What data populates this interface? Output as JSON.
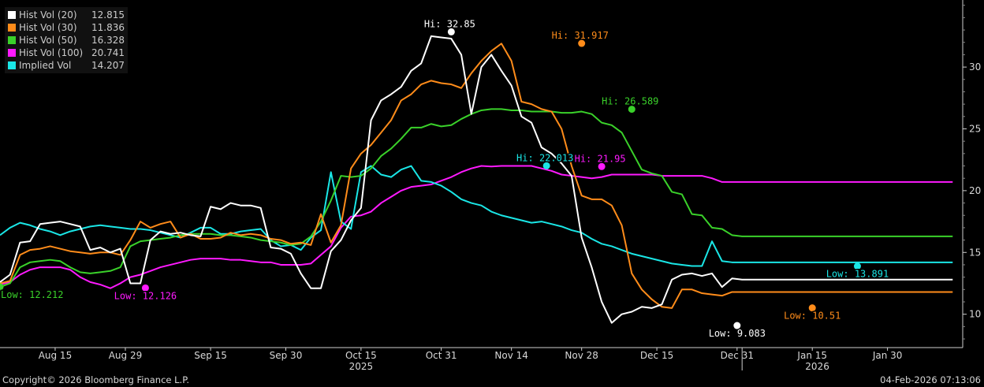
{
  "legend": [
    {
      "name": "Hist Vol (20)",
      "value": "12.815",
      "color": "#ffffff"
    },
    {
      "name": "Hist Vol (30)",
      "value": "11.836",
      "color": "#ff8c1a"
    },
    {
      "name": "Hist Vol (50)",
      "value": "16.328",
      "color": "#3ad12a"
    },
    {
      "name": "Hist Vol (100)",
      "value": "20.741",
      "color": "#ff1aff"
    },
    {
      "name": "Implied Vol",
      "value": "14.207",
      "color": "#1ae6e6"
    }
  ],
  "footer": {
    "copyright": "Copyright© 2026 Bloomberg Finance L.P.",
    "timestamp": "04-Feb-2026 07:13:06"
  },
  "chart_data": {
    "type": "line",
    "x": [
      0,
      2,
      4,
      6,
      8,
      10,
      12,
      14,
      16,
      18,
      20,
      22,
      24,
      26,
      28,
      30,
      32,
      34,
      36,
      38,
      40,
      42,
      44,
      46,
      48,
      50,
      52,
      54,
      56,
      58,
      60,
      62,
      64,
      66,
      68,
      70,
      72,
      74,
      76,
      78,
      80,
      82,
      84,
      86,
      88,
      90,
      92,
      94,
      96,
      98,
      100,
      102,
      104,
      106,
      108,
      110,
      112,
      114,
      116,
      118,
      120,
      122,
      124,
      126,
      128,
      130,
      132,
      134,
      136,
      138,
      140,
      142,
      144,
      146,
      148,
      150,
      152,
      154,
      156,
      158,
      160,
      162,
      164,
      166,
      168,
      170,
      172,
      174,
      176,
      178,
      180,
      182,
      184,
      186,
      188,
      190
    ],
    "x_tick_labels": [
      {
        "x": 11,
        "label": "Aug 15"
      },
      {
        "x": 25,
        "label": "Aug 29"
      },
      {
        "x": 42,
        "label": "Sep 15"
      },
      {
        "x": 57,
        "label": "Sep 30"
      },
      {
        "x": 72,
        "label": "Oct 15"
      },
      {
        "x": 88,
        "label": "Oct 31"
      },
      {
        "x": 102,
        "label": "Nov 14"
      },
      {
        "x": 116,
        "label": "Nov 28"
      },
      {
        "x": 131,
        "label": "Dec 15"
      },
      {
        "x": 147,
        "label": "Dec 31"
      },
      {
        "x": 162,
        "label": "Jan 15"
      },
      {
        "x": 177,
        "label": "Jan 30"
      }
    ],
    "x_year_labels": [
      {
        "x": 72,
        "label": "2025"
      },
      {
        "x": 163,
        "label": "2026"
      }
    ],
    "x_year_divider": 148,
    "ylim": [
      7.3,
      35.3
    ],
    "y_ticks": [
      10,
      15,
      20,
      25,
      30
    ],
    "grid": false,
    "legend_position": "top-left",
    "series": [
      {
        "name": "Hist Vol (20)",
        "color": "#ffffff",
        "values": [
          12.6,
          13.2,
          15.8,
          15.9,
          17.3,
          17.4,
          17.5,
          17.3,
          17.1,
          15.2,
          15.4,
          15.0,
          15.3,
          12.5,
          12.5,
          16.0,
          16.7,
          16.5,
          16.6,
          16.4,
          16.3,
          18.7,
          18.5,
          19.0,
          18.8,
          18.8,
          18.6,
          15.4,
          15.3,
          14.9,
          13.3,
          12.1,
          12.1,
          15.1,
          16.0,
          17.6,
          18.6,
          25.7,
          27.3,
          27.8,
          28.4,
          29.7,
          30.3,
          32.5,
          32.4,
          32.3,
          31.0,
          26.2,
          30.0,
          31.0,
          29.7,
          28.5,
          26.0,
          25.5,
          23.5,
          23.0,
          22.2,
          21.2,
          16.2,
          13.8,
          11.0,
          9.3,
          10.0,
          10.2,
          10.6,
          10.5,
          10.8,
          12.8,
          13.2,
          13.3,
          13.1,
          13.3,
          12.2,
          12.9,
          12.8,
          12.8,
          12.8,
          12.8,
          12.8,
          12.8,
          12.8,
          12.8,
          12.8,
          12.8,
          12.8,
          12.8,
          12.8,
          12.8,
          12.8,
          12.8,
          12.8,
          12.8,
          12.8,
          12.8,
          12.8,
          12.8
        ]
      },
      {
        "name": "Hist Vol (30)",
        "color": "#ff8c1a",
        "values": [
          12.5,
          12.7,
          14.8,
          15.2,
          15.3,
          15.5,
          15.3,
          15.1,
          15.0,
          14.9,
          15.0,
          15.0,
          14.8,
          16.0,
          17.5,
          17.0,
          17.3,
          17.5,
          16.2,
          16.5,
          16.1,
          16.1,
          16.2,
          16.6,
          16.4,
          16.5,
          16.4,
          16.1,
          16.0,
          15.7,
          15.8,
          15.6,
          18.1,
          15.8,
          17.2,
          21.8,
          23.0,
          23.7,
          24.7,
          25.7,
          27.3,
          27.8,
          28.6,
          28.9,
          28.7,
          28.6,
          28.3,
          29.5,
          30.5,
          31.3,
          31.9,
          30.5,
          27.2,
          27.0,
          26.6,
          26.4,
          25.0,
          22.0,
          19.6,
          19.3,
          19.3,
          18.8,
          17.2,
          13.3,
          12.0,
          11.2,
          10.6,
          10.5,
          12.0,
          12.0,
          11.7,
          11.6,
          11.5,
          11.8,
          11.8,
          11.8,
          11.8,
          11.8,
          11.8,
          11.8,
          11.8,
          11.8,
          11.8,
          11.8,
          11.8,
          11.8,
          11.8,
          11.8,
          11.8,
          11.8,
          11.8,
          11.8,
          11.8,
          11.8,
          11.8,
          11.8
        ]
      },
      {
        "name": "Hist Vol (50)",
        "color": "#3ad12a",
        "values": [
          12.2,
          12.5,
          13.8,
          14.2,
          14.3,
          14.4,
          14.3,
          13.8,
          13.4,
          13.3,
          13.4,
          13.5,
          13.8,
          15.5,
          15.9,
          16.0,
          16.1,
          16.2,
          16.4,
          16.5,
          16.5,
          16.5,
          16.4,
          16.4,
          16.3,
          16.2,
          16.0,
          15.9,
          15.8,
          15.6,
          15.7,
          16.3,
          17.5,
          19.2,
          21.2,
          21.1,
          21.2,
          21.8,
          22.8,
          23.4,
          24.2,
          25.1,
          25.1,
          25.4,
          25.2,
          25.3,
          25.8,
          26.2,
          26.5,
          26.6,
          26.6,
          26.5,
          26.5,
          26.4,
          26.4,
          26.4,
          26.3,
          26.3,
          26.4,
          26.2,
          25.5,
          25.3,
          24.7,
          23.2,
          21.7,
          21.4,
          21.2,
          19.9,
          19.7,
          18.1,
          18.0,
          17.0,
          16.9,
          16.4,
          16.3,
          16.3,
          16.3,
          16.3,
          16.3,
          16.3,
          16.3,
          16.3,
          16.3,
          16.3,
          16.3,
          16.3,
          16.3,
          16.3,
          16.3,
          16.3,
          16.3,
          16.3,
          16.3,
          16.3,
          16.3,
          16.3
        ]
      },
      {
        "name": "Hist Vol (100)",
        "color": "#ff1aff",
        "values": [
          12.4,
          12.6,
          13.2,
          13.6,
          13.8,
          13.8,
          13.8,
          13.6,
          13.0,
          12.6,
          12.4,
          12.1,
          12.5,
          13.0,
          13.2,
          13.5,
          13.8,
          14.0,
          14.2,
          14.4,
          14.5,
          14.5,
          14.5,
          14.4,
          14.4,
          14.3,
          14.2,
          14.2,
          14.0,
          14.0,
          14.0,
          14.1,
          14.8,
          15.5,
          17.0,
          17.9,
          18.0,
          18.3,
          19.0,
          19.5,
          20.0,
          20.3,
          20.4,
          20.5,
          20.8,
          21.1,
          21.5,
          21.8,
          22.0,
          21.95,
          22.0,
          22.0,
          22.0,
          22.0,
          21.8,
          21.6,
          21.3,
          21.2,
          21.1,
          21.0,
          21.1,
          21.3,
          21.3,
          21.3,
          21.3,
          21.3,
          21.2,
          21.2,
          21.2,
          21.2,
          21.2,
          21.0,
          20.7,
          20.7,
          20.7,
          20.7,
          20.7,
          20.7,
          20.7,
          20.7,
          20.7,
          20.7,
          20.7,
          20.7,
          20.7,
          20.7,
          20.7,
          20.7,
          20.7,
          20.7,
          20.7,
          20.7,
          20.7,
          20.7,
          20.7,
          20.7
        ]
      },
      {
        "name": "Implied Vol",
        "color": "#1ae6e6",
        "values": [
          16.4,
          17.0,
          17.4,
          17.2,
          16.9,
          16.7,
          16.4,
          16.7,
          16.9,
          17.1,
          17.2,
          17.1,
          17.0,
          16.9,
          16.9,
          16.8,
          16.6,
          16.4,
          16.2,
          16.6,
          17.0,
          17.0,
          16.5,
          16.5,
          16.7,
          16.8,
          16.9,
          16.0,
          15.5,
          15.6,
          15.2,
          16.2,
          16.8,
          21.5,
          17.5,
          16.9,
          21.5,
          22.0,
          21.3,
          21.1,
          21.7,
          22.0,
          20.8,
          20.7,
          20.4,
          19.9,
          19.3,
          19.0,
          18.8,
          18.3,
          18.0,
          17.8,
          17.6,
          17.4,
          17.5,
          17.3,
          17.1,
          16.8,
          16.6,
          16.1,
          15.7,
          15.5,
          15.2,
          14.9,
          14.7,
          14.5,
          14.3,
          14.1,
          14.0,
          13.9,
          13.9,
          15.9,
          14.3,
          14.2,
          14.2,
          14.2,
          14.2,
          14.2,
          14.2,
          14.2,
          14.2,
          14.2,
          14.2,
          14.2,
          14.2,
          14.2,
          14.2,
          14.2,
          14.2,
          14.2,
          14.2,
          14.2,
          14.2,
          14.2,
          14.2,
          14.2
        ]
      }
    ],
    "annotations": [
      {
        "series": 0,
        "kind": "Hi",
        "label": "Hi: 32.85",
        "x": 90,
        "y": 32.85,
        "color": "#ffffff"
      },
      {
        "series": 0,
        "kind": "Low",
        "label": "Low: 9.083",
        "x": 147,
        "y": 9.083,
        "color": "#ffffff"
      },
      {
        "series": 1,
        "kind": "Hi",
        "label": "Hi: 31.917",
        "x": 116,
        "y": 31.917,
        "color": "#ff8c1a"
      },
      {
        "series": 1,
        "kind": "Low",
        "label": "Low: 10.51",
        "x": 162,
        "y": 10.51,
        "color": "#ff8c1a"
      },
      {
        "series": 2,
        "kind": "Hi",
        "label": "Hi: 26.589",
        "x": 126,
        "y": 26.589,
        "color": "#3ad12a"
      },
      {
        "series": 2,
        "kind": "Low",
        "label": "Low: 12.212",
        "x": 0,
        "y": 12.212,
        "color": "#3ad12a"
      },
      {
        "series": 3,
        "kind": "Hi",
        "label": "Hi: 21.95",
        "x": 120,
        "y": 21.95,
        "color": "#ff1aff"
      },
      {
        "series": 3,
        "kind": "Low",
        "label": "Low: 12.126",
        "x": 29,
        "y": 12.126,
        "color": "#ff1aff"
      },
      {
        "series": 4,
        "kind": "Hi",
        "label": "Hi: 22.013",
        "x": 109,
        "y": 22.013,
        "color": "#1ae6e6"
      },
      {
        "series": 4,
        "kind": "Low",
        "label": "Low: 13.891",
        "x": 171,
        "y": 13.891,
        "color": "#1ae6e6"
      }
    ]
  }
}
